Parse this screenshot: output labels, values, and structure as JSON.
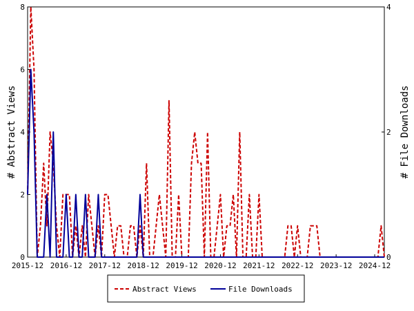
{
  "chart_data": {
    "type": "line",
    "xlabel": "",
    "ylabel_left": "# Abstract Views",
    "ylabel_right": "# File Downloads",
    "ylim_left": [
      0,
      8
    ],
    "ylim_right": [
      0,
      4
    ],
    "yticks_left": [
      0,
      2,
      4,
      6,
      8
    ],
    "yticks_right": [
      0,
      2,
      4
    ],
    "x_tick_labels": [
      "2015-12",
      "2016-12",
      "2017-12",
      "2018-12",
      "2019-12",
      "2020-12",
      "2021-12",
      "2022-12",
      "2023-12",
      "2024-12"
    ],
    "x_start": "2015-12",
    "x_end": "2025-03",
    "grid": false,
    "legend_position": "bottom-center",
    "series": [
      {
        "name": "Abstract Views",
        "axis": "left",
        "color": "#cc0000",
        "dash": true,
        "points": [
          [
            "2015-12",
            2
          ],
          [
            "2016-01",
            8
          ],
          [
            "2016-02",
            6
          ],
          [
            "2016-03",
            0
          ],
          [
            "2016-04",
            1
          ],
          [
            "2016-05",
            3
          ],
          [
            "2016-06",
            1
          ],
          [
            "2016-07",
            4
          ],
          [
            "2016-08",
            3
          ],
          [
            "2016-09",
            1
          ],
          [
            "2016-10",
            0
          ],
          [
            "2016-11",
            2
          ],
          [
            "2016-12",
            2
          ],
          [
            "2017-01",
            2
          ],
          [
            "2017-02",
            0
          ],
          [
            "2017-03",
            1
          ],
          [
            "2017-04",
            0
          ],
          [
            "2017-05",
            1
          ],
          [
            "2017-06",
            0
          ],
          [
            "2017-07",
            2
          ],
          [
            "2017-08",
            1
          ],
          [
            "2017-09",
            0
          ],
          [
            "2017-10",
            1
          ],
          [
            "2017-11",
            0
          ],
          [
            "2017-12",
            2
          ],
          [
            "2018-01",
            2
          ],
          [
            "2018-02",
            1
          ],
          [
            "2018-03",
            0
          ],
          [
            "2018-04",
            1
          ],
          [
            "2018-05",
            1
          ],
          [
            "2018-06",
            0
          ],
          [
            "2018-07",
            0
          ],
          [
            "2018-08",
            1
          ],
          [
            "2018-09",
            1
          ],
          [
            "2018-10",
            0
          ],
          [
            "2018-11",
            1
          ],
          [
            "2018-12",
            0
          ],
          [
            "2019-01",
            3
          ],
          [
            "2019-02",
            0
          ],
          [
            "2019-03",
            0
          ],
          [
            "2019-04",
            1
          ],
          [
            "2019-05",
            2
          ],
          [
            "2019-06",
            1
          ],
          [
            "2019-07",
            0
          ],
          [
            "2019-08",
            5
          ],
          [
            "2019-09",
            0
          ],
          [
            "2019-10",
            0
          ],
          [
            "2019-11",
            2
          ],
          [
            "2019-12",
            0
          ],
          [
            "2020-01",
            0
          ],
          [
            "2020-02",
            0
          ],
          [
            "2020-03",
            3
          ],
          [
            "2020-04",
            4
          ],
          [
            "2020-05",
            3
          ],
          [
            "2020-06",
            3
          ],
          [
            "2020-07",
            0
          ],
          [
            "2020-08",
            4
          ],
          [
            "2020-09",
            0
          ],
          [
            "2020-10",
            0
          ],
          [
            "2020-11",
            1
          ],
          [
            "2020-12",
            2
          ],
          [
            "2021-01",
            0
          ],
          [
            "2021-02",
            1
          ],
          [
            "2021-03",
            1
          ],
          [
            "2021-04",
            2
          ],
          [
            "2021-05",
            0
          ],
          [
            "2021-06",
            4
          ],
          [
            "2021-07",
            0
          ],
          [
            "2021-08",
            0
          ],
          [
            "2021-09",
            2
          ],
          [
            "2021-10",
            0
          ],
          [
            "2021-11",
            0
          ],
          [
            "2021-12",
            2
          ],
          [
            "2022-01",
            0
          ],
          [
            "2022-02",
            0
          ],
          [
            "2022-03",
            0
          ],
          [
            "2022-04",
            0
          ],
          [
            "2022-05",
            0
          ],
          [
            "2022-06",
            0
          ],
          [
            "2022-07",
            0
          ],
          [
            "2022-08",
            0
          ],
          [
            "2022-09",
            1
          ],
          [
            "2022-10",
            1
          ],
          [
            "2022-11",
            0
          ],
          [
            "2022-12",
            1
          ],
          [
            "2023-01",
            0
          ],
          [
            "2023-02",
            0
          ],
          [
            "2023-03",
            0
          ],
          [
            "2023-04",
            1
          ],
          [
            "2023-05",
            1
          ],
          [
            "2023-06",
            1
          ],
          [
            "2023-07",
            0
          ],
          [
            "2023-08",
            0
          ],
          [
            "2023-09",
            0
          ],
          [
            "2023-10",
            0
          ],
          [
            "2023-11",
            0
          ],
          [
            "2023-12",
            0
          ],
          [
            "2024-01",
            0
          ],
          [
            "2024-02",
            0
          ],
          [
            "2024-03",
            0
          ],
          [
            "2024-04",
            0
          ],
          [
            "2024-05",
            0
          ],
          [
            "2024-06",
            0
          ],
          [
            "2024-07",
            0
          ],
          [
            "2024-08",
            0
          ],
          [
            "2024-09",
            0
          ],
          [
            "2024-10",
            0
          ],
          [
            "2024-11",
            0
          ],
          [
            "2024-12",
            0
          ],
          [
            "2025-01",
            0
          ],
          [
            "2025-02",
            1
          ],
          [
            "2025-03",
            0
          ]
        ]
      },
      {
        "name": "File Downloads",
        "axis": "right",
        "color": "#000099",
        "dash": false,
        "points": [
          [
            "2015-12",
            1
          ],
          [
            "2016-01",
            3
          ],
          [
            "2016-02",
            2
          ],
          [
            "2016-03",
            0
          ],
          [
            "2016-04",
            0
          ],
          [
            "2016-05",
            0
          ],
          [
            "2016-06",
            1
          ],
          [
            "2016-07",
            0
          ],
          [
            "2016-08",
            2
          ],
          [
            "2016-09",
            0
          ],
          [
            "2016-10",
            0
          ],
          [
            "2016-11",
            0
          ],
          [
            "2016-12",
            1
          ],
          [
            "2017-01",
            0
          ],
          [
            "2017-02",
            0
          ],
          [
            "2017-03",
            1
          ],
          [
            "2017-04",
            0
          ],
          [
            "2017-05",
            0
          ],
          [
            "2017-06",
            1
          ],
          [
            "2017-07",
            0
          ],
          [
            "2017-08",
            0
          ],
          [
            "2017-09",
            0
          ],
          [
            "2017-10",
            1
          ],
          [
            "2017-11",
            0
          ],
          [
            "2017-12",
            0
          ],
          [
            "2018-01",
            0
          ],
          [
            "2018-02",
            0
          ],
          [
            "2018-03",
            0
          ],
          [
            "2018-04",
            0
          ],
          [
            "2018-05",
            0
          ],
          [
            "2018-06",
            0
          ],
          [
            "2018-07",
            0
          ],
          [
            "2018-08",
            0
          ],
          [
            "2018-09",
            0
          ],
          [
            "2018-10",
            0
          ],
          [
            "2018-11",
            1
          ],
          [
            "2018-12",
            0
          ],
          [
            "2019-01",
            0
          ],
          [
            "2019-02",
            0
          ],
          [
            "2019-03",
            0
          ],
          [
            "2019-04",
            0
          ],
          [
            "2019-05",
            0
          ],
          [
            "2019-06",
            0
          ],
          [
            "2019-07",
            0
          ],
          [
            "2019-08",
            0
          ],
          [
            "2019-09",
            0
          ],
          [
            "2019-10",
            0
          ],
          [
            "2019-11",
            0
          ],
          [
            "2019-12",
            0
          ],
          [
            "2020-01",
            0
          ],
          [
            "2020-02",
            0
          ],
          [
            "2020-03",
            0
          ],
          [
            "2020-04",
            0
          ],
          [
            "2020-05",
            0
          ],
          [
            "2020-06",
            0
          ],
          [
            "2020-07",
            0
          ],
          [
            "2020-08",
            0
          ],
          [
            "2020-09",
            0
          ],
          [
            "2020-10",
            0
          ],
          [
            "2020-11",
            0
          ],
          [
            "2020-12",
            0
          ],
          [
            "2021-01",
            0
          ],
          [
            "2021-02",
            0
          ],
          [
            "2021-03",
            0
          ],
          [
            "2021-04",
            0
          ],
          [
            "2021-05",
            0
          ],
          [
            "2021-06",
            0
          ],
          [
            "2021-07",
            0
          ],
          [
            "2021-08",
            0
          ],
          [
            "2021-09",
            0
          ],
          [
            "2021-10",
            0
          ],
          [
            "2021-11",
            0
          ],
          [
            "2021-12",
            0
          ],
          [
            "2022-01",
            0
          ],
          [
            "2022-02",
            0
          ],
          [
            "2022-03",
            0
          ],
          [
            "2022-04",
            0
          ],
          [
            "2022-05",
            0
          ],
          [
            "2022-06",
            0
          ],
          [
            "2022-07",
            0
          ],
          [
            "2022-08",
            0
          ],
          [
            "2022-09",
            0
          ],
          [
            "2022-10",
            0
          ],
          [
            "2022-11",
            0
          ],
          [
            "2022-12",
            0
          ],
          [
            "2023-01",
            0
          ],
          [
            "2023-02",
            0
          ],
          [
            "2023-03",
            0
          ],
          [
            "2023-04",
            0
          ],
          [
            "2023-05",
            0
          ],
          [
            "2023-06",
            0
          ],
          [
            "2023-07",
            0
          ],
          [
            "2023-08",
            0
          ],
          [
            "2023-09",
            0
          ],
          [
            "2023-10",
            0
          ],
          [
            "2023-11",
            0
          ],
          [
            "2023-12",
            0
          ],
          [
            "2024-01",
            0
          ],
          [
            "2024-02",
            0
          ],
          [
            "2024-03",
            0
          ],
          [
            "2024-04",
            0
          ],
          [
            "2024-05",
            0
          ],
          [
            "2024-06",
            0
          ],
          [
            "2024-07",
            0
          ],
          [
            "2024-08",
            0
          ],
          [
            "2024-09",
            0
          ],
          [
            "2024-10",
            0
          ],
          [
            "2024-11",
            0
          ],
          [
            "2024-12",
            0
          ],
          [
            "2025-01",
            0
          ],
          [
            "2025-02",
            0
          ],
          [
            "2025-03",
            0
          ]
        ]
      }
    ]
  }
}
